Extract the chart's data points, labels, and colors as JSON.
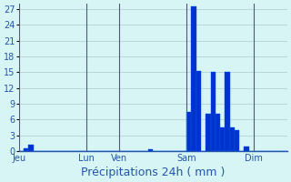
{
  "title": "Précipitations 24h ( mm )",
  "ylabel": "",
  "xlabel": "Précipitations 24h ( mm )",
  "ylim": [
    0,
    28
  ],
  "yticks": [
    0,
    3,
    6,
    9,
    12,
    15,
    18,
    21,
    24,
    27
  ],
  "background_color": "#d8f5f5",
  "bar_color": "#0033cc",
  "bar_edge_color": "#0055ff",
  "grid_color": "#aacccc",
  "num_bars": 56,
  "day_labels": [
    "Jeu",
    "Lun",
    "Ven",
    "Sam",
    "Dim"
  ],
  "day_positions": [
    0,
    14,
    21,
    35,
    49
  ],
  "bar_values": [
    0,
    0.5,
    1.2,
    0,
    0,
    0,
    0,
    0,
    0,
    0,
    0,
    0,
    0,
    0,
    0,
    0,
    0,
    0,
    0,
    0,
    0,
    0,
    0,
    0,
    0,
    0,
    0,
    0.3,
    0,
    0,
    0,
    0,
    0,
    0,
    0,
    7.5,
    27.5,
    15.2,
    0,
    7.0,
    15.0,
    7.0,
    4.5,
    15.0,
    4.5,
    4.0,
    0,
    0.8,
    0,
    0,
    0,
    0,
    0,
    0,
    0,
    0
  ],
  "vline_positions": [
    0,
    14,
    21,
    35,
    49
  ],
  "vline_color": "#555577",
  "text_color": "#2255aa",
  "tick_fontsize": 7,
  "label_fontsize": 9
}
